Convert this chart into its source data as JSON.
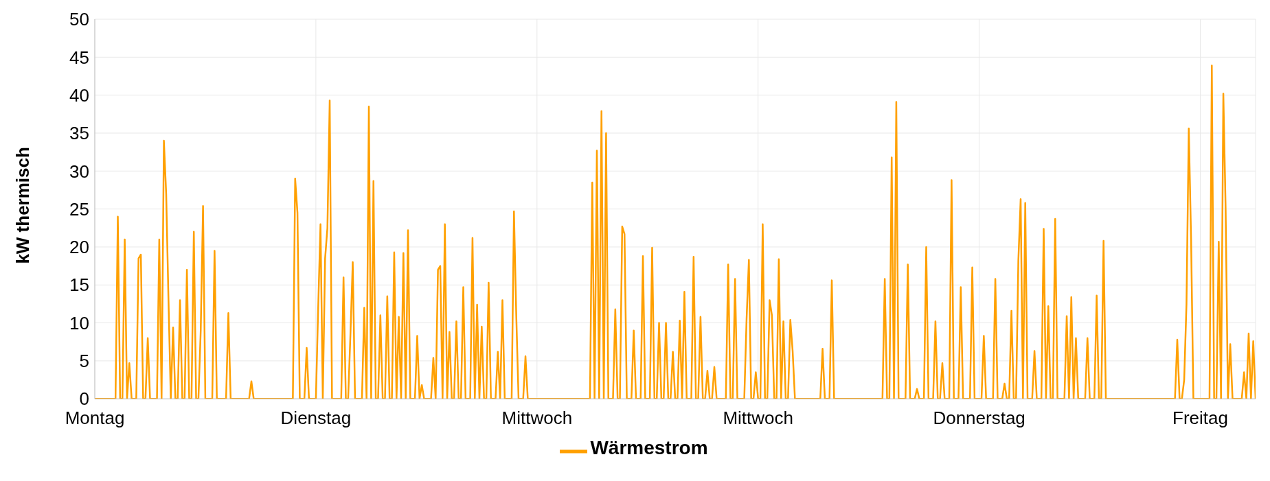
{
  "chart_data": {
    "type": "line",
    "ylabel": "kW thermisch",
    "ylim": [
      0,
      50
    ],
    "yticks": [
      0,
      5,
      10,
      15,
      20,
      25,
      30,
      35,
      40,
      45,
      50
    ],
    "grid": true,
    "legend": "bottom",
    "marker": "none",
    "line_style": "solid",
    "categories": [
      "Montag",
      null,
      null,
      null,
      null,
      null,
      null,
      null,
      null,
      null,
      null,
      null,
      null,
      null,
      null,
      null,
      null,
      null,
      null,
      null,
      null,
      null,
      null,
      null,
      null,
      null,
      null,
      null,
      null,
      null,
      null,
      null,
      null,
      null,
      null,
      null,
      null,
      null,
      null,
      null,
      null,
      null,
      null,
      null,
      null,
      null,
      null,
      null,
      null,
      null,
      null,
      null,
      null,
      null,
      null,
      null,
      null,
      null,
      null,
      null,
      null,
      null,
      null,
      null,
      null,
      null,
      null,
      null,
      null,
      null,
      null,
      null,
      null,
      null,
      null,
      null,
      null,
      null,
      null,
      null,
      null,
      null,
      null,
      null,
      null,
      null,
      null,
      null,
      null,
      null,
      null,
      null,
      null,
      null,
      null,
      null,
      "Dienstag",
      null,
      null,
      null,
      null,
      null,
      null,
      null,
      null,
      null,
      null,
      null,
      null,
      null,
      null,
      null,
      null,
      null,
      null,
      null,
      null,
      null,
      null,
      null,
      null,
      null,
      null,
      null,
      null,
      null,
      null,
      null,
      null,
      null,
      null,
      null,
      null,
      null,
      null,
      null,
      null,
      null,
      null,
      null,
      null,
      null,
      null,
      null,
      null,
      null,
      null,
      null,
      null,
      null,
      null,
      null,
      null,
      null,
      null,
      null,
      null,
      null,
      null,
      null,
      null,
      null,
      null,
      null,
      null,
      null,
      null,
      null,
      null,
      null,
      null,
      null,
      null,
      null,
      null,
      null,
      null,
      null,
      null,
      null,
      null,
      null,
      null,
      null,
      null,
      null,
      null,
      null,
      null,
      null,
      null,
      null,
      "Mittwoch",
      null,
      null,
      null,
      null,
      null,
      null,
      null,
      null,
      null,
      null,
      null,
      null,
      null,
      null,
      null,
      null,
      null,
      null,
      null,
      null,
      null,
      null,
      null,
      null,
      null,
      null,
      null,
      null,
      null,
      null,
      null,
      null,
      null,
      null,
      null,
      null,
      null,
      null,
      null,
      null,
      null,
      null,
      null,
      null,
      null,
      null,
      null,
      null,
      null,
      null,
      null,
      null,
      null,
      null,
      null,
      null,
      null,
      null,
      null,
      null,
      null,
      null,
      null,
      null,
      null,
      null,
      null,
      null,
      null,
      null,
      null,
      null,
      null,
      null,
      null,
      null,
      null,
      null,
      null,
      null,
      null,
      null,
      null,
      null,
      null,
      null,
      null,
      null,
      null,
      null,
      null,
      null,
      null,
      null,
      null,
      "Mittwoch",
      null,
      null,
      null,
      null,
      null,
      null,
      null,
      null,
      null,
      null,
      null,
      null,
      null,
      null,
      null,
      null,
      null,
      null,
      null,
      null,
      null,
      null,
      null,
      null,
      null,
      null,
      null,
      null,
      null,
      null,
      null,
      null,
      null,
      null,
      null,
      null,
      null,
      null,
      null,
      null,
      null,
      null,
      null,
      null,
      null,
      null,
      null,
      null,
      null,
      null,
      null,
      null,
      null,
      null,
      null,
      null,
      null,
      null,
      null,
      null,
      null,
      null,
      null,
      null,
      null,
      null,
      null,
      null,
      null,
      null,
      null,
      null,
      null,
      null,
      null,
      null,
      null,
      null,
      null,
      null,
      null,
      null,
      null,
      null,
      null,
      null,
      null,
      null,
      null,
      null,
      null,
      null,
      null,
      null,
      null,
      "Donnerstag",
      null,
      null,
      null,
      null,
      null,
      null,
      null,
      null,
      null,
      null,
      null,
      null,
      null,
      null,
      null,
      null,
      null,
      null,
      null,
      null,
      null,
      null,
      null,
      null,
      null,
      null,
      null,
      null,
      null,
      null,
      null,
      null,
      null,
      null,
      null,
      null,
      null,
      null,
      null,
      null,
      null,
      null,
      null,
      null,
      null,
      null,
      null,
      null,
      null,
      null,
      null,
      null,
      null,
      null,
      null,
      null,
      null,
      null,
      null,
      null,
      null,
      null,
      null,
      null,
      null,
      null,
      null,
      null,
      null,
      null,
      null,
      null,
      null,
      null,
      null,
      null,
      null,
      null,
      null,
      null,
      null,
      null,
      null,
      null,
      null,
      null,
      null,
      null,
      null,
      null,
      null,
      null,
      null,
      null,
      null,
      "Freitag",
      null,
      null,
      null,
      null,
      null,
      null,
      null,
      null,
      null,
      null,
      null,
      null,
      null,
      null,
      null,
      null,
      null,
      null,
      null,
      null,
      null,
      null,
      null,
      null
    ],
    "series": [
      {
        "name": "Wärmestrom",
        "color": "#ffa000",
        "values": [
          0,
          0,
          0,
          0,
          0,
          0,
          0,
          0,
          0,
          0,
          24,
          0,
          0,
          21,
          0,
          4.7,
          0,
          0,
          0,
          18.5,
          19,
          0,
          0,
          8,
          0,
          0,
          0,
          0,
          21,
          0,
          34,
          27,
          13,
          0,
          9.4,
          0,
          0,
          13,
          0,
          0,
          17,
          0,
          0,
          22,
          0,
          0,
          9,
          25.4,
          0,
          0,
          0,
          0,
          19.5,
          0,
          0,
          0,
          0,
          0,
          11.3,
          0,
          0,
          0,
          0,
          0,
          0,
          0,
          0,
          0,
          2.3,
          0,
          0,
          0,
          0,
          0,
          0,
          0,
          0,
          0,
          0,
          0,
          0,
          0,
          0,
          0,
          0,
          0,
          0,
          29,
          24.5,
          0,
          0,
          0,
          6.7,
          0,
          0,
          0,
          0,
          12,
          23,
          0,
          18.5,
          22.5,
          39.3,
          0,
          0,
          0,
          0,
          0,
          16,
          0,
          0,
          8.5,
          18,
          0,
          0,
          0,
          0,
          12,
          0,
          38.5,
          0,
          28.7,
          0,
          0,
          11,
          0,
          0,
          13.5,
          0,
          0,
          19.3,
          0,
          10.8,
          0,
          19.2,
          0,
          22.2,
          0,
          0,
          0,
          8.3,
          0,
          1.8,
          0,
          0,
          0,
          0,
          5.4,
          0,
          17,
          17.5,
          0,
          23,
          0,
          8.8,
          0,
          0,
          10.2,
          0,
          0,
          14.7,
          0,
          0,
          0,
          21.2,
          0,
          12.4,
          0,
          9.5,
          0,
          0,
          15.3,
          0,
          0,
          0,
          6.2,
          0,
          13,
          0,
          0,
          0,
          0,
          24.7,
          11,
          0,
          0,
          0,
          5.6,
          0,
          0,
          0,
          0,
          0,
          0,
          0,
          0,
          0,
          0,
          0,
          0,
          0,
          0,
          0,
          0,
          0,
          0,
          0,
          0,
          0,
          0,
          0,
          0,
          0,
          0,
          0,
          0,
          28.5,
          0,
          32.7,
          0,
          37.9,
          0,
          35,
          0,
          0,
          0,
          11.8,
          0,
          0,
          22.7,
          21.7,
          0,
          0,
          0,
          9,
          0,
          0,
          0,
          18.8,
          0,
          0,
          0,
          19.9,
          0,
          0,
          10,
          0,
          0,
          10,
          0,
          0,
          6.2,
          0,
          0,
          10.3,
          0,
          14.1,
          0,
          0,
          0,
          18.7,
          0,
          0,
          10.8,
          0,
          0,
          3.7,
          0,
          0,
          4.2,
          0,
          0,
          0,
          0,
          0,
          17.7,
          0,
          0,
          15.8,
          0,
          0,
          0,
          0,
          10.5,
          18.3,
          0,
          0,
          3.5,
          0,
          0,
          23,
          0,
          0,
          13,
          11,
          0,
          0,
          18.4,
          0,
          10.2,
          0,
          0,
          10.4,
          6.3,
          0,
          0,
          0,
          0,
          0,
          0,
          0,
          0,
          0,
          0,
          0,
          0,
          6.6,
          0,
          0,
          0,
          15.6,
          0,
          0,
          0,
          0,
          0,
          0,
          0,
          0,
          0,
          0,
          0,
          0,
          0,
          0,
          0,
          0,
          0,
          0,
          0,
          0,
          0,
          0,
          15.8,
          0,
          0,
          31.8,
          0,
          39.1,
          0,
          0,
          0,
          0,
          17.7,
          0,
          0,
          0,
          1.3,
          0,
          0,
          0,
          20,
          0,
          0,
          0,
          10.2,
          0,
          0,
          4.7,
          0,
          0,
          0,
          28.8,
          0,
          0,
          0,
          14.7,
          0,
          0,
          0,
          0,
          17.3,
          0,
          0,
          0,
          0,
          8.3,
          0,
          0,
          0,
          0,
          15.8,
          0,
          0,
          0,
          2,
          0,
          0,
          11.6,
          0,
          0,
          18.2,
          26.3,
          0,
          25.8,
          0,
          0,
          0,
          6.3,
          0,
          0,
          0,
          22.4,
          0,
          12.2,
          0,
          0,
          23.7,
          0,
          0,
          0,
          0,
          10.9,
          0,
          13.4,
          0,
          8,
          0,
          0,
          0,
          0,
          8,
          0,
          0,
          0,
          13.6,
          0,
          0,
          20.8,
          0,
          0,
          0,
          0,
          0,
          0,
          0,
          0,
          0,
          0,
          0,
          0,
          0,
          0,
          0,
          0,
          0,
          0,
          0,
          0,
          0,
          0,
          0,
          0,
          0,
          0,
          0,
          0,
          0,
          0,
          0,
          7.8,
          0,
          0,
          2.5,
          12.5,
          35.6,
          21,
          0,
          0,
          0,
          0,
          0,
          0,
          0,
          0,
          43.9,
          0,
          0,
          20.7,
          0,
          40.2,
          25,
          0,
          7.2,
          0,
          0,
          0,
          0,
          0,
          3.5,
          0,
          8.6,
          0,
          7.6,
          0
        ]
      }
    ]
  }
}
